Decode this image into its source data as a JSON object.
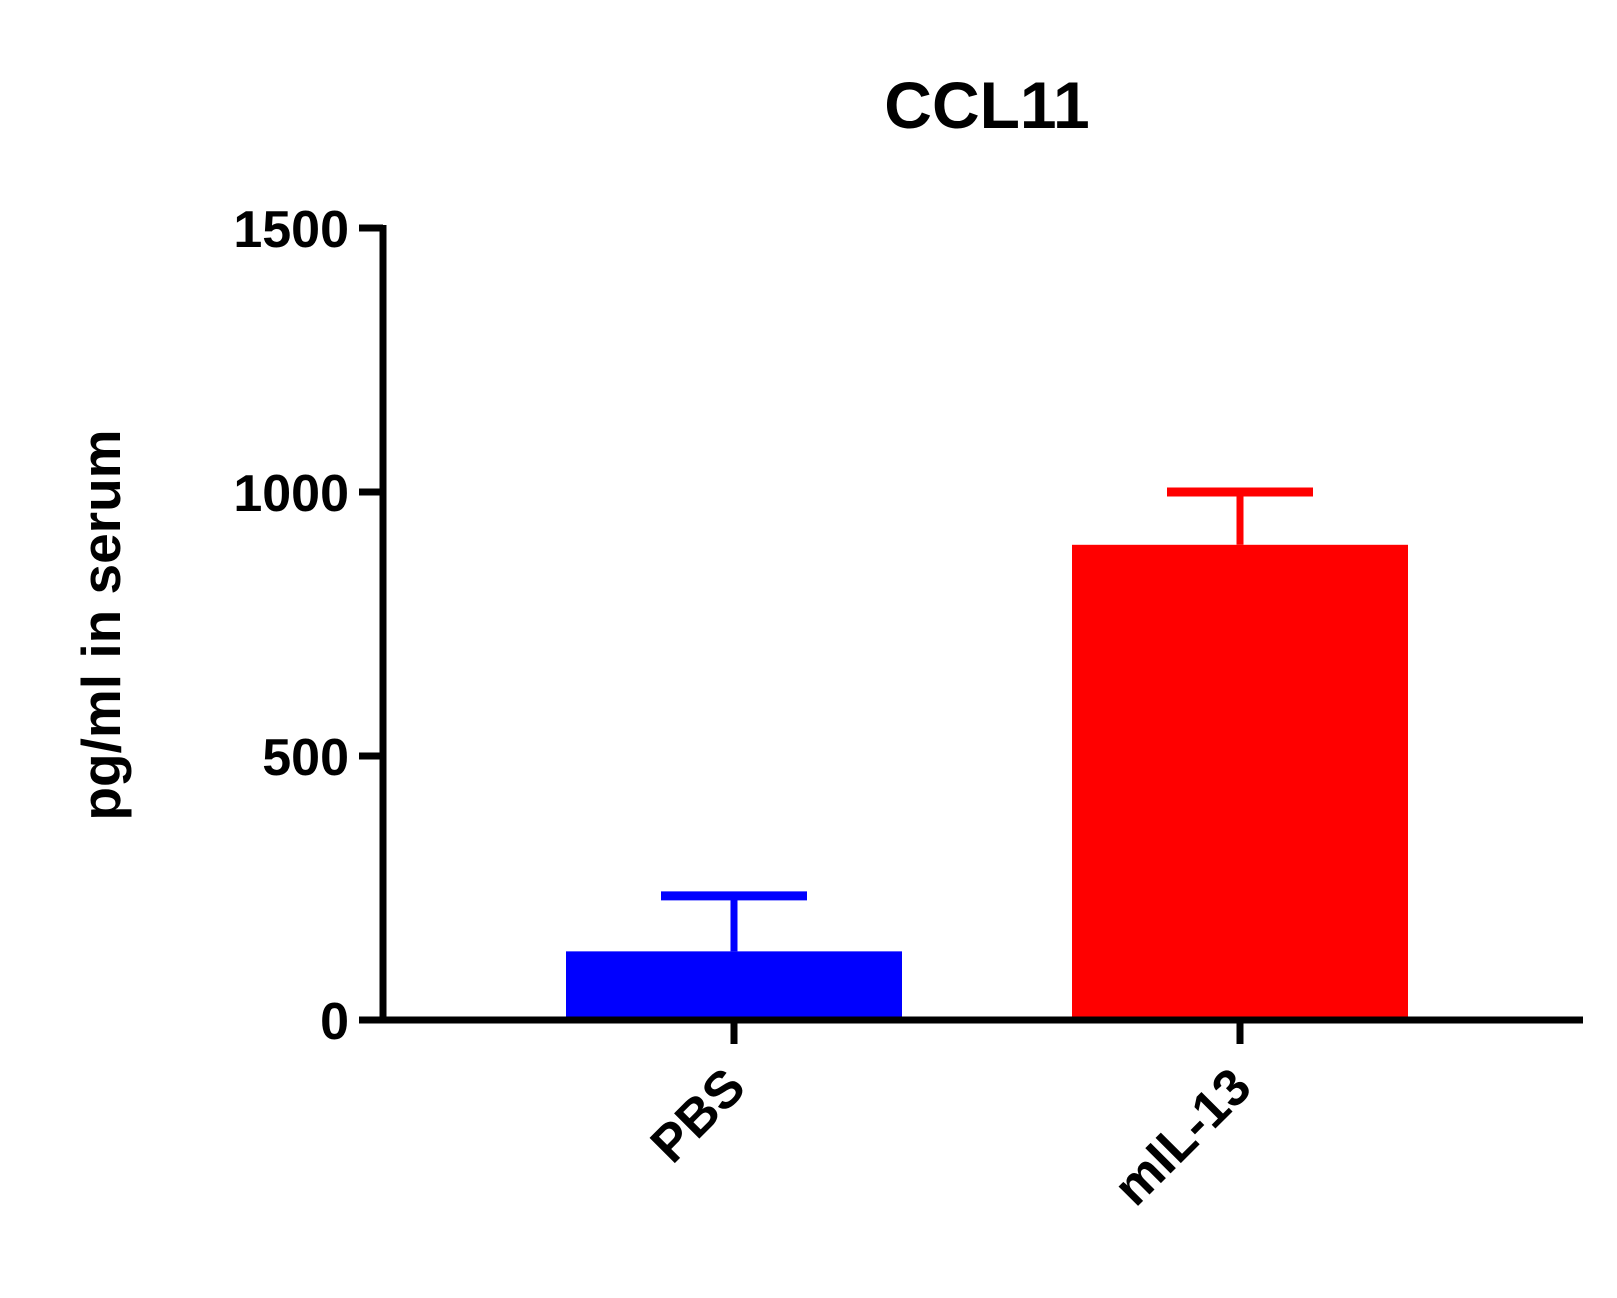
{
  "chart_data": {
    "type": "bar",
    "title": "CCL11",
    "xlabel": "",
    "ylabel": "pg/ml in serum",
    "categories": [
      "PBS",
      "mIL-13"
    ],
    "values": [
      130,
      900
    ],
    "error_upper": [
      235,
      1000
    ],
    "colors": [
      "#0000ff",
      "#ff0000"
    ],
    "ylim": [
      0,
      1500
    ],
    "yticks": [
      0,
      500,
      1000,
      1500
    ],
    "ytick_labels": [
      "0",
      "500",
      "1000",
      "1500"
    ],
    "grid": false,
    "legend": false
  }
}
